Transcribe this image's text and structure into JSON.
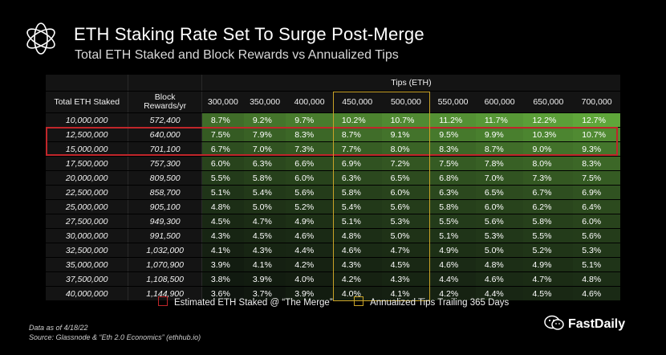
{
  "title": "ETH Staking Rate Set To Surge Post-Merge",
  "subtitle": "Total ETH Staked and Block Rewards vs Annualized Tips",
  "colors": {
    "merge_box": "#c0262a",
    "tips_box": "#c9a227",
    "green_high": "#5fa63a",
    "green_low": "#0e140e"
  },
  "chart_data": {
    "type": "table",
    "header_group": "Tips (ETH)",
    "row_header_labels": [
      "Total ETH Staked",
      "Block Rewards/yr"
    ],
    "tips": [
      "300,000",
      "350,000",
      "400,000",
      "450,000",
      "500,000",
      "550,000",
      "600,000",
      "650,000",
      "700,000"
    ],
    "rows": [
      {
        "staked": "10,000,000",
        "rewards": "572,400",
        "values": [
          "8.7%",
          "9.2%",
          "9.7%",
          "10.2%",
          "10.7%",
          "11.2%",
          "11.7%",
          "12.2%",
          "12.7%"
        ]
      },
      {
        "staked": "12,500,000",
        "rewards": "640,000",
        "values": [
          "7.5%",
          "7.9%",
          "8.3%",
          "8.7%",
          "9.1%",
          "9.5%",
          "9.9%",
          "10.3%",
          "10.7%"
        ]
      },
      {
        "staked": "15,000,000",
        "rewards": "701,100",
        "values": [
          "6.7%",
          "7.0%",
          "7.3%",
          "7.7%",
          "8.0%",
          "8.3%",
          "8.7%",
          "9.0%",
          "9.3%"
        ]
      },
      {
        "staked": "17,500,000",
        "rewards": "757,300",
        "values": [
          "6.0%",
          "6.3%",
          "6.6%",
          "6.9%",
          "7.2%",
          "7.5%",
          "7.8%",
          "8.0%",
          "8.3%"
        ]
      },
      {
        "staked": "20,000,000",
        "rewards": "809,500",
        "values": [
          "5.5%",
          "5.8%",
          "6.0%",
          "6.3%",
          "6.5%",
          "6.8%",
          "7.0%",
          "7.3%",
          "7.5%"
        ]
      },
      {
        "staked": "22,500,000",
        "rewards": "858,700",
        "values": [
          "5.1%",
          "5.4%",
          "5.6%",
          "5.8%",
          "6.0%",
          "6.3%",
          "6.5%",
          "6.7%",
          "6.9%"
        ]
      },
      {
        "staked": "25,000,000",
        "rewards": "905,100",
        "values": [
          "4.8%",
          "5.0%",
          "5.2%",
          "5.4%",
          "5.6%",
          "5.8%",
          "6.0%",
          "6.2%",
          "6.4%"
        ]
      },
      {
        "staked": "27,500,000",
        "rewards": "949,300",
        "values": [
          "4.5%",
          "4.7%",
          "4.9%",
          "5.1%",
          "5.3%",
          "5.5%",
          "5.6%",
          "5.8%",
          "6.0%"
        ]
      },
      {
        "staked": "30,000,000",
        "rewards": "991,500",
        "values": [
          "4.3%",
          "4.5%",
          "4.6%",
          "4.8%",
          "5.0%",
          "5.1%",
          "5.3%",
          "5.5%",
          "5.6%"
        ]
      },
      {
        "staked": "32,500,000",
        "rewards": "1,032,000",
        "values": [
          "4.1%",
          "4.3%",
          "4.4%",
          "4.6%",
          "4.7%",
          "4.9%",
          "5.0%",
          "5.2%",
          "5.3%"
        ]
      },
      {
        "staked": "35,000,000",
        "rewards": "1,070,900",
        "values": [
          "3.9%",
          "4.1%",
          "4.2%",
          "4.3%",
          "4.5%",
          "4.6%",
          "4.8%",
          "4.9%",
          "5.1%"
        ]
      },
      {
        "staked": "37,500,000",
        "rewards": "1,108,500",
        "values": [
          "3.8%",
          "3.9%",
          "4.0%",
          "4.2%",
          "4.3%",
          "4.4%",
          "4.6%",
          "4.7%",
          "4.8%"
        ]
      },
      {
        "staked": "40,000,000",
        "rewards": "1,144,900",
        "values": [
          "3.6%",
          "3.7%",
          "3.9%",
          "4.0%",
          "4.1%",
          "4.2%",
          "4.4%",
          "4.5%",
          "4.6%"
        ]
      }
    ],
    "highlight_rows": [
      1,
      2
    ],
    "highlight_cols": [
      3,
      4
    ]
  },
  "legend": {
    "merge_label": "Estimated ETH Staked @ “The Merge”",
    "tips_label": "Annualized Tips Trailing 365 Days"
  },
  "footnote": {
    "line1": "Data as of 4/18/22",
    "line2": "Source: Glassnode & “Eth 2.0 Economics” (ethhub.io)"
  },
  "watermark": {
    "text": "FastDaily"
  }
}
